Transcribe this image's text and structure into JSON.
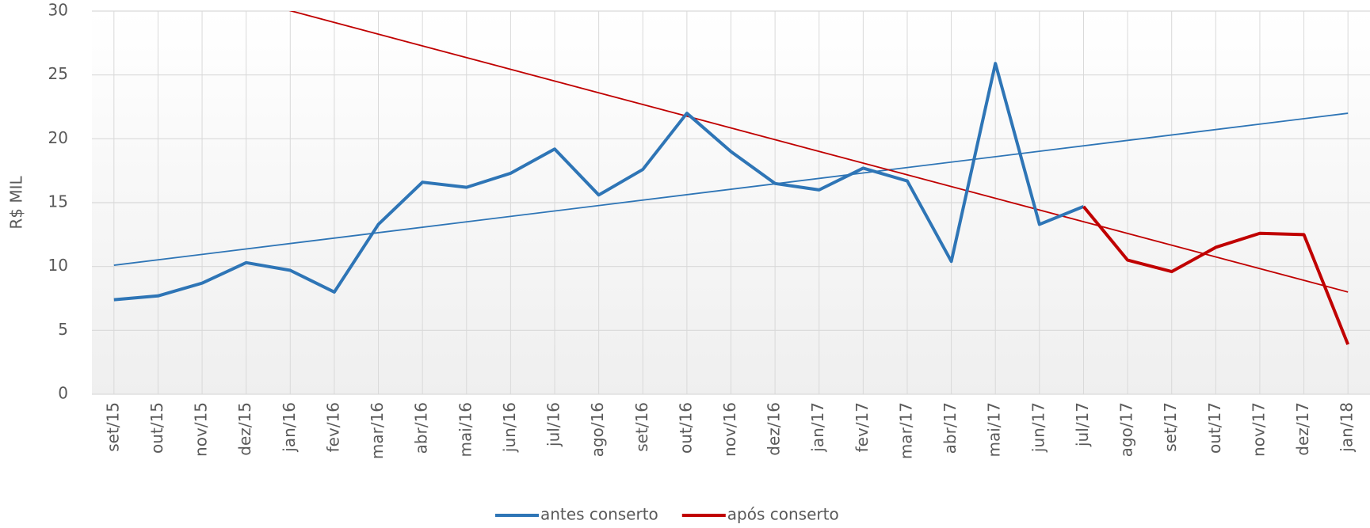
{
  "chart_data": {
    "type": "line",
    "ylabel": "R$ MIL",
    "categories": [
      "set/15",
      "out/15",
      "nov/15",
      "dez/15",
      "jan/16",
      "fev/16",
      "mar/16",
      "abr/16",
      "mai/16",
      "jun/16",
      "jul/16",
      "ago/16",
      "set/16",
      "out/16",
      "nov/16",
      "dez/16",
      "jan/17",
      "fev/17",
      "mar/17",
      "abr/17",
      "mai/17",
      "jun/17",
      "jul/17",
      "ago/17",
      "set/17",
      "out/17",
      "nov/17",
      "dez/17",
      "jan/18"
    ],
    "series": [
      {
        "name": "antes conserto",
        "color": "#2e75b6",
        "values": [
          7.4,
          7.7,
          8.7,
          10.3,
          9.7,
          8.0,
          13.3,
          16.6,
          16.2,
          17.3,
          19.2,
          15.6,
          17.6,
          22.0,
          19.0,
          16.5,
          16.0,
          17.7,
          16.7,
          10.4,
          25.9,
          13.3,
          14.7,
          null,
          null,
          null,
          null,
          null,
          null
        ]
      },
      {
        "name": "após conserto",
        "color": "#c00000",
        "values": [
          null,
          null,
          null,
          null,
          null,
          null,
          null,
          null,
          null,
          null,
          null,
          null,
          null,
          null,
          null,
          null,
          null,
          null,
          null,
          null,
          null,
          null,
          14.7,
          10.5,
          9.6,
          11.5,
          12.6,
          12.5,
          3.9
        ]
      }
    ],
    "trendlines": [
      {
        "color": "#2e75b6",
        "start": 10.1,
        "end": 22.0
      },
      {
        "color": "#c00000",
        "start": 33.7,
        "end": 8.0
      }
    ],
    "ylim": [
      0,
      30
    ],
    "yticks": [
      0,
      5,
      10,
      15,
      20,
      25,
      30
    ],
    "grid": true,
    "legend": "bottom"
  }
}
